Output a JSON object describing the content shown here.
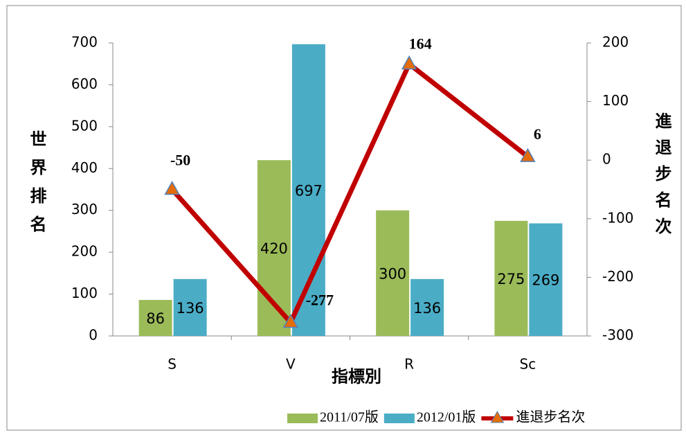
{
  "chart_data": {
    "type": "bar_line",
    "x_axis_label": "指標別",
    "y_axis_label": "世界排名",
    "y2_axis_label": "進退步名次",
    "categories": [
      "S",
      "V",
      "R",
      "Sc"
    ],
    "series": [
      {
        "name": "2011/07版",
        "color": "#9bbb59",
        "type": "bar",
        "values": [
          86,
          420,
          300,
          275
        ]
      },
      {
        "name": "2012/01版",
        "color": "#4bacc6",
        "type": "bar",
        "values": [
          136,
          697,
          136,
          269
        ]
      },
      {
        "name": "進退步名次",
        "color": "#c00000",
        "marker_color": "#e46c0a",
        "type": "line",
        "axis": "y2",
        "values": [
          -50,
          -277,
          164,
          6
        ]
      }
    ],
    "ylim": [
      0,
      700
    ],
    "yticks": [
      0,
      100,
      200,
      300,
      400,
      500,
      600,
      700
    ],
    "y2lim": [
      -300,
      200
    ],
    "y2ticks": [
      -300,
      -200,
      -100,
      0,
      100,
      200
    ],
    "legend": "bottom-right"
  }
}
